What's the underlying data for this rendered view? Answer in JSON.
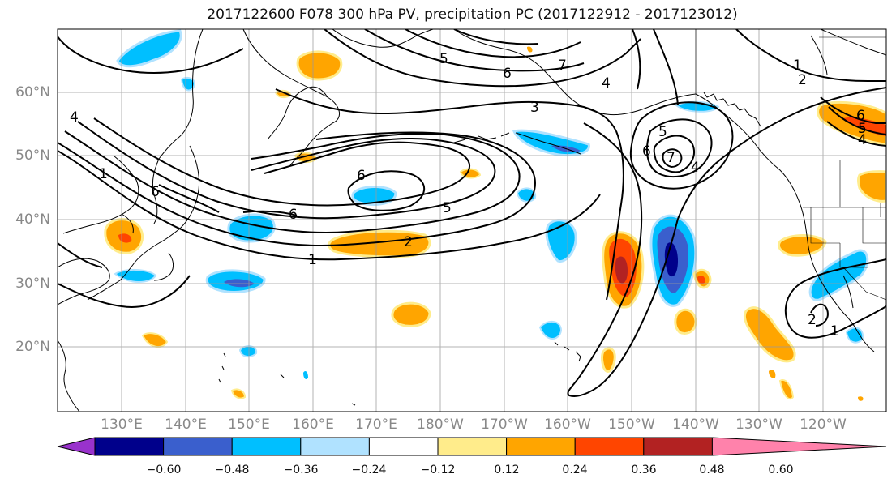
{
  "title": "2017122600 F078 300 hPa PV, precipitation PC (2017122912 - 2017123012)",
  "lat_labels": [
    "60°N",
    "50°N",
    "40°N",
    "30°N",
    "20°N"
  ],
  "lon_labels": [
    "130°E",
    "140°E",
    "150°E",
    "160°E",
    "170°E",
    "180°W",
    "170°W",
    "160°W",
    "150°W",
    "140°W",
    "130°W",
    "120°W"
  ],
  "contour_labels": [
    "1",
    "2",
    "3",
    "4",
    "5",
    "6",
    "7"
  ],
  "colorbar": {
    "ticks": [
      "−0.60",
      "−0.48",
      "−0.36",
      "−0.24",
      "−0.12",
      "0.12",
      "0.24",
      "0.36",
      "0.48",
      "0.60"
    ],
    "colors": [
      "#9932cc",
      "#00008b",
      "#3a5fcd",
      "#00bfff",
      "#b0e2ff",
      "#ffffff",
      "#ffec8b",
      "#ffa500",
      "#ff4500",
      "#b22222",
      "#ff82ab"
    ]
  }
}
